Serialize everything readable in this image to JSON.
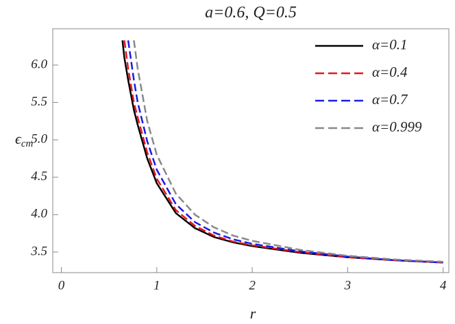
{
  "chart_data": {
    "type": "line",
    "title": "a=0.6, Q=0.5",
    "xlabel": "r",
    "ylabel": "ϵ",
    "ylabel_subscript": "cm",
    "x": [
      0.64,
      0.66,
      0.7,
      0.76,
      0.8,
      0.9,
      1.0,
      1.2,
      1.4,
      1.6,
      1.8,
      2.0,
      2.5,
      3.0,
      3.5,
      4.0
    ],
    "series": [
      {
        "name": "α=0.1",
        "color": "#000000",
        "style": "solid",
        "values": [
          6.33,
          6.1,
          5.8,
          5.4,
          5.2,
          4.75,
          4.42,
          4.02,
          3.82,
          3.7,
          3.63,
          3.58,
          3.49,
          3.43,
          3.39,
          3.36
        ]
      },
      {
        "name": "α=0.4",
        "color": "#e8141c",
        "style": "dashed",
        "values": [
          null,
          6.33,
          5.95,
          5.5,
          5.3,
          4.83,
          4.48,
          4.06,
          3.85,
          3.72,
          3.64,
          3.59,
          3.5,
          3.43,
          3.39,
          3.36
        ]
      },
      {
        "name": "α=0.7",
        "color": "#1a1ae6",
        "style": "dashed",
        "values": [
          null,
          null,
          6.33,
          5.8,
          5.5,
          4.98,
          4.6,
          4.14,
          3.9,
          3.76,
          3.67,
          3.61,
          3.51,
          3.44,
          3.39,
          3.36
        ]
      },
      {
        "name": "α=0.999",
        "color": "#888888",
        "style": "dashed",
        "values": [
          null,
          null,
          null,
          6.33,
          5.95,
          5.25,
          4.8,
          4.28,
          4.0,
          3.83,
          3.72,
          3.65,
          3.53,
          3.45,
          3.4,
          3.37
        ]
      }
    ],
    "xlim": [
      -0.09,
      4.06
    ],
    "ylim": [
      3.225,
      6.485
    ],
    "xticks": [
      0,
      1,
      2,
      3,
      4
    ],
    "yticks": [
      3.5,
      {
        "value": 4,
        "label": "4.0"
      },
      4.5,
      {
        "value": 5,
        "label": "5.0"
      },
      5.5,
      {
        "value": 6,
        "label": "6.0"
      }
    ],
    "legend": "upper right",
    "grid": false
  }
}
